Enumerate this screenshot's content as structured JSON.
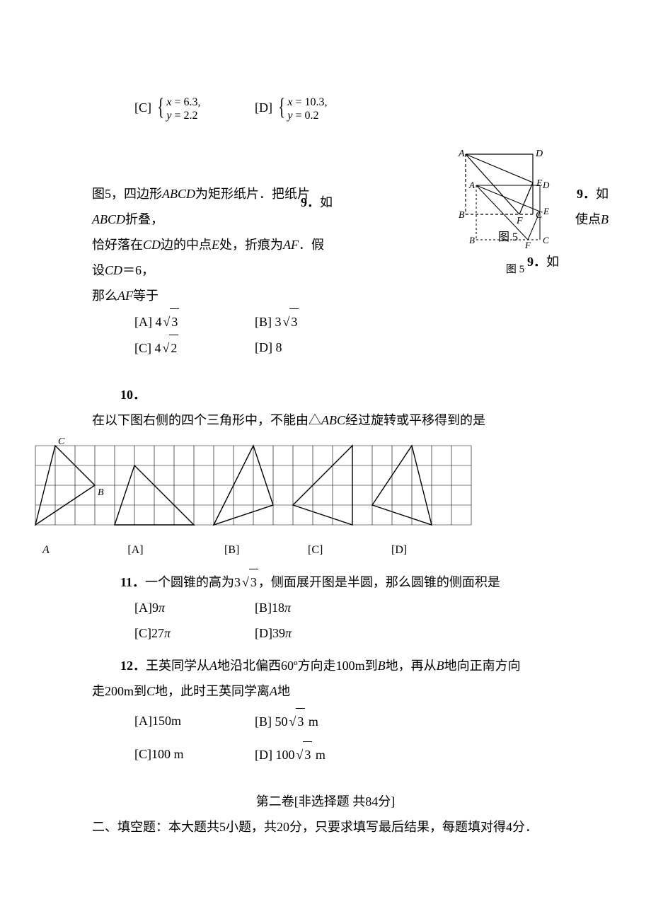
{
  "q8": {
    "optC_label": "[C]",
    "optC_line1": "x = 6.3,",
    "optC_line2": "y = 2.2",
    "optD_label": "[D]",
    "optD_line1": "x = 10.3,",
    "optD_line2": "y = 0.2"
  },
  "q9": {
    "number": "9．",
    "lead": "如",
    "line1_a": "图5，四边形",
    "line1_b": "为矩形纸片．把纸片",
    "line1_c": "折叠，",
    "abcd": "ABCD",
    "line1_end": "使点",
    "B": "B",
    "line2_a": "恰好落在",
    "CD": "CD",
    "line2_b": "边的中点",
    "E": "E",
    "line2_c": "处，折痕为",
    "AF": "AF",
    "line2_d": "．假设",
    "line2_e": "＝6，",
    "line3": "那么",
    "line3_b": "等于",
    "optA_label": "[A]",
    "optA_coef": "4",
    "optA_rad": "3",
    "optB_label": "[B]",
    "optB_coef": "3",
    "optB_rad": "3",
    "optC_label": "[C]",
    "optC_coef": "4",
    "optC_rad": "2",
    "optD_label": "[D]",
    "optD_val": "8",
    "fig_caption": "图 5",
    "fig_labels": {
      "A": "A",
      "B": "B",
      "C": "C",
      "D": "D",
      "E": "E",
      "F": "F"
    }
  },
  "q10": {
    "number": "10．",
    "text_a": "在以下图右侧的四个三角形中，不能由△",
    "ABC": "ABC",
    "text_b": "经过旋转或平移得到的是",
    "labelA": "[A]",
    "labelB": "[B]",
    "labelC": "[C]",
    "labelD": "[D]",
    "grid": {
      "cols": 22,
      "rows": 4,
      "cell": 28,
      "line_color": "#000000",
      "triangles": {
        "master": {
          "pts": [
            [
              0,
              4
            ],
            [
              3,
              2
            ],
            [
              1,
              0
            ]
          ],
          "labels": {
            "A": [
              0,
              4
            ],
            "B": [
              3,
              2
            ],
            "C": [
              1,
              0
            ]
          }
        },
        "A": {
          "pts": [
            [
              4,
              4
            ],
            [
              8,
              4
            ],
            [
              5,
              1
            ]
          ]
        },
        "B": {
          "pts": [
            [
              9,
              4
            ],
            [
              11,
              0
            ],
            [
              12,
              3
            ]
          ]
        },
        "C": {
          "pts": [
            [
              13,
              3
            ],
            [
              16,
              4
            ],
            [
              16,
              0
            ]
          ]
        },
        "D": {
          "pts": [
            [
              17,
              3
            ],
            [
              20,
              4
            ],
            [
              19,
              0
            ]
          ]
        }
      }
    }
  },
  "q11": {
    "number": "11．",
    "text_a": "一个圆锥的高为",
    "coef": "3",
    "rad": "3",
    "text_b": "，侧面展开图是半圆，那么圆锥的侧面积是",
    "optA": "[A]9",
    "optB": "[B]18",
    "optC": "[C]27",
    "optD": "[D]39",
    "pi": "π"
  },
  "q12": {
    "number": "12．",
    "text_a": "王英同学从",
    "A": "A",
    "text_b": "地沿北偏西60º方向走100m到",
    "B": "B",
    "text_c": "地，再从",
    "text_d": "地向正南方向",
    "line2_a": "走200m到",
    "C": "C",
    "line2_b": "地，此时王英同学离",
    "line2_c": "地",
    "optA": "[A]150m",
    "optB_label": "[B]",
    "optB_coef": "50",
    "optB_rad": "3",
    "optB_unit": " m",
    "optC": "[C]100 m",
    "optD_label": "[D]",
    "optD_coef": "100",
    "optD_rad": "3",
    "optD_unit": " m"
  },
  "section2": {
    "title": "第二卷[非选择题  共84分]",
    "fill_in": "二、填空题：本大题共5小题，共20分，只要求填写最后结果，每题填对得4分．"
  },
  "colors": {
    "text": "#000000",
    "background": "#ffffff"
  },
  "fontsize_body": 18
}
